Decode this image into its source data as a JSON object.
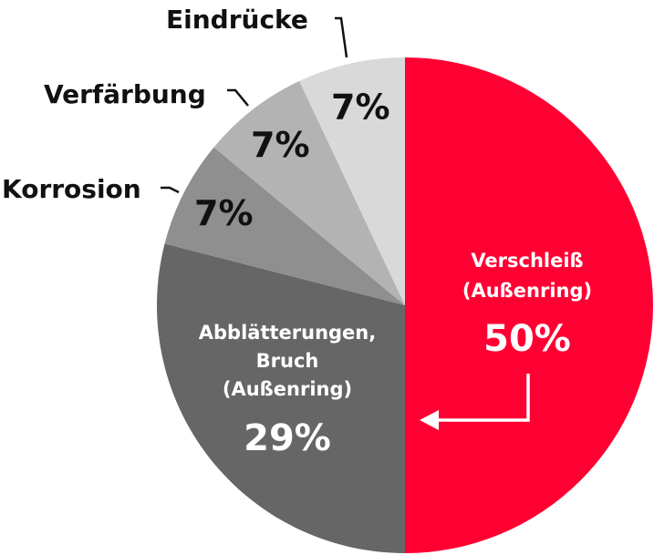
{
  "chart_data": {
    "type": "pie",
    "title": "",
    "slices": [
      {
        "label": "Verschleiß (Außenring)",
        "label_lines": [
          "Verschleiß",
          "(Außenring)"
        ],
        "value": 50,
        "value_label": "50%",
        "color": "#ff0033",
        "text_color": "#ffffff"
      },
      {
        "label": "Abblätterungen, Bruch (Außenring)",
        "label_lines": [
          "Abblätterungen,",
          "Bruch",
          "(Außenring)"
        ],
        "value": 29,
        "value_label": "29%",
        "color": "#666666",
        "text_color": "#ffffff"
      },
      {
        "label": "Korrosion",
        "label_lines": [
          "Korrosion"
        ],
        "value": 7,
        "value_label": "7%",
        "color": "#8f8f8f",
        "text_color": "#111111"
      },
      {
        "label": "Verfärbung",
        "label_lines": [
          "Verfärbung"
        ],
        "value": 7,
        "value_label": "7%",
        "color": "#b3b3b3",
        "text_color": "#111111"
      },
      {
        "label": "Eindrücke",
        "label_lines": [
          "Eindrücke"
        ],
        "value": 7,
        "value_label": "7%",
        "color": "#d9d9d9",
        "text_color": "#111111"
      }
    ],
    "start": "top",
    "direction": "clockwise"
  }
}
